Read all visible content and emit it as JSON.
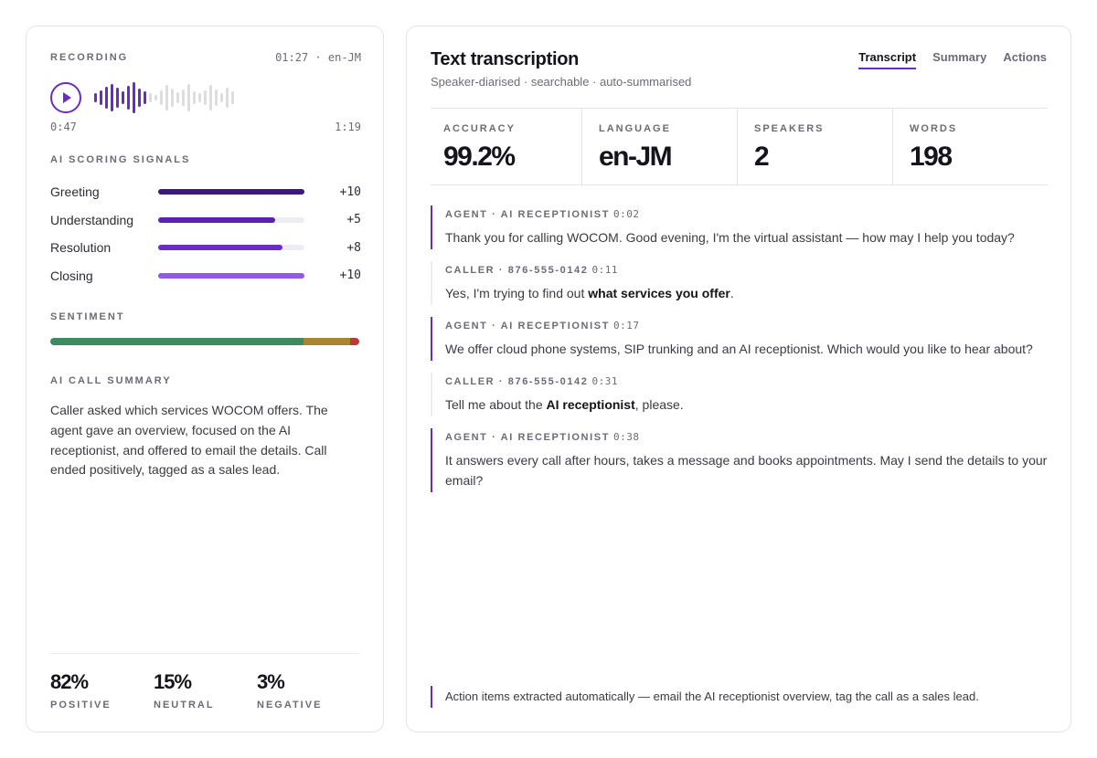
{
  "recording": {
    "label": "RECORDING",
    "meta": "01:27 · en-JM",
    "elapsed": "0:47",
    "remaining": "1:19",
    "played_fraction": 0.38,
    "accent": "#6a2cc4"
  },
  "signals": {
    "title": "AI SCORING SIGNALS",
    "items": [
      {
        "label": "Greeting",
        "value": "+10",
        "fill": 1.0,
        "color": "#3a1880"
      },
      {
        "label": "Understanding",
        "value": "+5",
        "fill": 0.8,
        "color": "#5a21b6"
      },
      {
        "label": "Resolution",
        "value": "+8",
        "fill": 0.85,
        "color": "#6a2cc4"
      },
      {
        "label": "Closing",
        "value": "+10",
        "fill": 1.0,
        "color": "#9358e6"
      }
    ]
  },
  "sentiment": {
    "title": "SENTIMENT",
    "positive": {
      "value": "82%",
      "label": "POSITIVE",
      "fraction": 0.82,
      "color": "#3d8a62"
    },
    "neutral": {
      "value": "15%",
      "label": "NEUTRAL",
      "fraction": 0.15,
      "color": "#a8852e"
    },
    "negative": {
      "value": "3%",
      "label": "NEGATIVE",
      "fraction": 0.03,
      "color": "#b83b3b"
    }
  },
  "summary": {
    "title": "AI CALL SUMMARY",
    "text": "Caller asked which services WOCOM offers. The agent gave an overview, focused on the AI receptionist, and offered to email the details. Call ended positively, tagged as a sales lead."
  },
  "header": {
    "title": "Text transcription",
    "subtitle": "Speaker-diarised · searchable · auto-summarised"
  },
  "tabs": [
    {
      "label": "Transcript",
      "active": true
    },
    {
      "label": "Summary",
      "active": false
    },
    {
      "label": "Actions",
      "active": false
    }
  ],
  "metrics": [
    {
      "label": "ACCURACY",
      "value": "99.2%"
    },
    {
      "label": "LANGUAGE",
      "value": "en-JM"
    },
    {
      "label": "SPEAKERS",
      "value": "2"
    },
    {
      "label": "WORDS",
      "value": "198"
    }
  ],
  "transcript": [
    {
      "speaker": "AGENT · AI RECEPTIONIST",
      "time": "0:02",
      "role": "agent",
      "parts": [
        {
          "t": "Thank you for calling WOCOM. Good evening, I'm the virtual assistant — how may I help you today?",
          "b": false
        }
      ]
    },
    {
      "speaker": "CALLER · 876-555-0142",
      "time": "0:11",
      "role": "caller",
      "parts": [
        {
          "t": "Yes, I'm trying to find out ",
          "b": false
        },
        {
          "t": "what services you offer",
          "b": true
        },
        {
          "t": ".",
          "b": false
        }
      ]
    },
    {
      "speaker": "AGENT · AI RECEPTIONIST",
      "time": "0:17",
      "role": "agent",
      "parts": [
        {
          "t": "We offer cloud phone systems, SIP trunking and an AI receptionist. Which would you like to hear about?",
          "b": false
        }
      ]
    },
    {
      "speaker": "CALLER · 876-555-0142",
      "time": "0:31",
      "role": "caller",
      "parts": [
        {
          "t": "Tell me about the ",
          "b": false
        },
        {
          "t": "AI receptionist",
          "b": true
        },
        {
          "t": ", please.",
          "b": false
        }
      ]
    },
    {
      "speaker": "AGENT · AI RECEPTIONIST",
      "time": "0:38",
      "role": "agent",
      "parts": [
        {
          "t": "It answers every call after hours, takes a message and books appointments. May I send the details to your email?",
          "b": false
        }
      ]
    }
  ],
  "footnote": "Action items extracted automatically — email the AI receptionist overview, tag the call as a sales lead."
}
